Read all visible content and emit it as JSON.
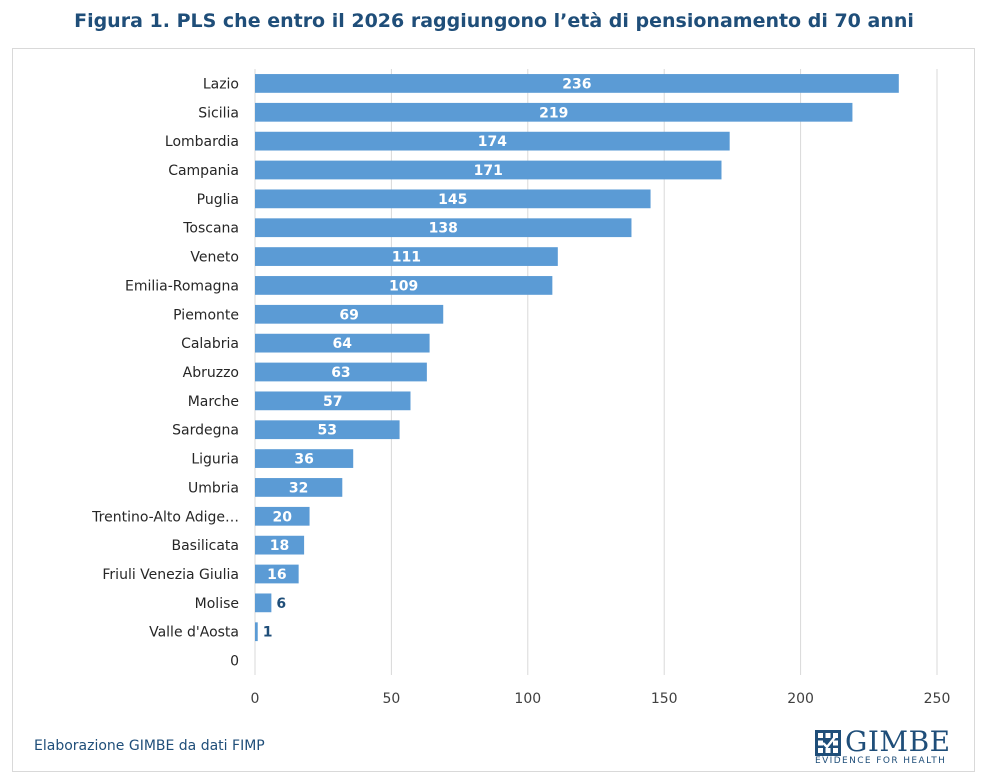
{
  "title": "Figura 1. PLS che entro il 2026 raggiungono l’età di pensionamento di 70 anni",
  "source": "Elaborazione GIMBE da dati FIMP",
  "logo": {
    "word": "GIMBE",
    "tagline": "EVIDENCE FOR HEALTH"
  },
  "colors": {
    "bar": "#5b9bd5",
    "title": "#1f4e79",
    "grid": "#d9d9d9",
    "label_inside": "#ffffff",
    "label_outside": "#1f4e79"
  },
  "chart_data": {
    "type": "bar",
    "orientation": "horizontal",
    "categories": [
      "Lazio",
      "Sicilia",
      "Lombardia",
      "Campania",
      "Puglia",
      "Toscana",
      "Veneto",
      "Emilia-Romagna",
      "Piemonte",
      "Calabria",
      "Abruzzo",
      "Marche",
      "Sardegna",
      "Liguria",
      "Umbria",
      "Trentino-Alto Adige…",
      "Basilicata",
      "Friuli Venezia Giulia",
      "Molise",
      "Valle d'Aosta",
      "0"
    ],
    "values": [
      236,
      219,
      174,
      171,
      145,
      138,
      111,
      109,
      69,
      64,
      63,
      57,
      53,
      36,
      32,
      20,
      18,
      16,
      6,
      1,
      null
    ],
    "xticks": [
      "0",
      "50",
      "100",
      "150",
      "200",
      "250"
    ],
    "xlim": [
      0,
      250
    ],
    "grid": true,
    "data_labels": true
  }
}
